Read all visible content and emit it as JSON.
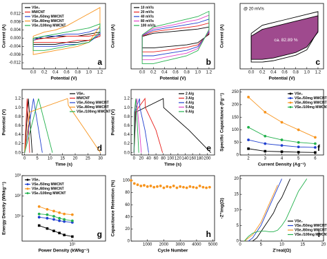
{
  "chart_data": [
    {
      "type": "line",
      "panel_label": "a",
      "x_label": "Potential (V)",
      "y_label": "Current (A)",
      "legend": "upper left",
      "xlim": [
        -0.2,
        1.3
      ],
      "xticks": [
        {
          "value": 0,
          "label": "0.0"
        },
        0.2,
        0.4,
        0.6,
        0.8,
        {
          "value": 1,
          "label": "1.0"
        },
        1.2
      ],
      "ylim": [
        -0.015,
        0.017
      ],
      "yticks": [
        -0.012,
        -0.008,
        -0.004,
        {
          "value": 0,
          "label": "0.000"
        },
        0.004,
        0.008,
        0.012
      ],
      "x": [
        0,
        0.2,
        0.4,
        0.6,
        0.8,
        1.0,
        1.2,
        1.2,
        1.0,
        0.8,
        0.6,
        0.4,
        0.2,
        0,
        0
      ],
      "series": [
        {
          "name": "VSe₂",
          "color": "#000000",
          "values": [
            0.0,
            0.0,
            0.001,
            0.001,
            0.001,
            0.002,
            0.003,
            0.001,
            -0.001,
            -0.002,
            -0.002,
            -0.003,
            -0.003,
            -0.003,
            0.0
          ]
        },
        {
          "name": "MWCNT",
          "color": "#e8201c",
          "values": [
            -0.001,
            0.0,
            0.0,
            0.001,
            0.001,
            0.001,
            0.002,
            0.001,
            -0.001,
            -0.001,
            -0.002,
            -0.002,
            -0.002,
            -0.002,
            -0.001
          ]
        },
        {
          "name": "VSe₂/50mg MWCNT",
          "color": "#1f3fcf",
          "values": [
            -0.001,
            0.001,
            0.001,
            0.002,
            0.002,
            0.003,
            0.005,
            0.002,
            -0.002,
            -0.003,
            -0.003,
            -0.004,
            -0.004,
            -0.004,
            -0.001
          ]
        },
        {
          "name": "VSe₂/80mg MWCNT",
          "color": "#f7941d",
          "values": [
            0.001,
            0.003,
            0.004,
            0.006,
            0.009,
            0.012,
            0.015,
            0.006,
            -0.002,
            -0.004,
            -0.005,
            -0.006,
            -0.007,
            -0.008,
            0.001
          ]
        },
        {
          "name": "VSe₂/100mg MWCNT",
          "color": "#22b14c",
          "values": [
            0.0,
            0.001,
            0.002,
            0.003,
            0.004,
            0.005,
            0.007,
            0.003,
            -0.002,
            -0.003,
            -0.004,
            -0.005,
            -0.006,
            -0.006,
            0.0
          ]
        }
      ]
    },
    {
      "type": "line",
      "panel_label": "b",
      "x_label": "Potential (V)",
      "y_label": "Current (A)",
      "legend": "upper left",
      "xlim": [
        -0.2,
        1.3
      ],
      "xticks": [
        {
          "value": 0,
          "label": "0.0"
        },
        0.2,
        0.4,
        0.6,
        0.8,
        {
          "value": 1,
          "label": "1.0"
        },
        1.2
      ],
      "ylim": [
        -1.2,
        1.3
      ],
      "x": [
        0,
        0.2,
        0.4,
        0.6,
        0.8,
        1.0,
        1.2,
        1.2,
        1.0,
        0.8,
        0.6,
        0.4,
        0.2,
        0,
        0
      ],
      "series": [
        {
          "name": "10 mV/s",
          "color": "#000000",
          "values": [
            0.04,
            0.16,
            0.2,
            0.24,
            0.28,
            0.32,
            0.4,
            0.12,
            -0.2,
            -0.28,
            -0.32,
            -0.36,
            -0.4,
            -0.4,
            0.04
          ]
        },
        {
          "name": "20 mV/s",
          "color": "#e8201c",
          "values": [
            0.05,
            0.22,
            0.28,
            0.33,
            0.38,
            0.44,
            0.55,
            0.16,
            -0.28,
            -0.38,
            -0.44,
            -0.5,
            -0.55,
            -0.55,
            0.05
          ]
        },
        {
          "name": "40 mV/s",
          "color": "#1f3fcf",
          "values": [
            0.07,
            0.28,
            0.35,
            0.42,
            0.49,
            0.56,
            0.7,
            0.21,
            -0.35,
            -0.49,
            -0.56,
            -0.63,
            -0.7,
            -0.7,
            0.07
          ]
        },
        {
          "name": "80 mV/s",
          "color": "#e040c8",
          "values": [
            0.08,
            0.34,
            0.42,
            0.5,
            0.6,
            0.68,
            0.85,
            0.25,
            -0.42,
            -0.6,
            -0.68,
            -0.76,
            -0.85,
            -0.85,
            0.08
          ]
        },
        {
          "name": "100 mV/s",
          "color": "#22b14c",
          "values": [
            0.1,
            0.4,
            0.5,
            0.6,
            0.7,
            0.8,
            1.0,
            0.3,
            -0.5,
            -0.7,
            -0.8,
            -0.9,
            -1.0,
            -1.0,
            0.1
          ]
        }
      ]
    },
    {
      "type": "line",
      "panel_label": "c",
      "x_label": "Potential (V)",
      "y_label": "Current (A)",
      "title": "@ 20 mV/s",
      "annotation": "ca. 82.89 %",
      "xlim": [
        -0.2,
        1.3
      ],
      "xticks": [
        {
          "value": 0,
          "label": "0.0"
        },
        0.2,
        0.4,
        0.6,
        0.8,
        {
          "value": 1,
          "label": "1.0"
        },
        1.2
      ],
      "ylim": [
        -1.1,
        1.3
      ],
      "x": [
        0,
        0.2,
        0.4,
        0.6,
        0.8,
        1.0,
        1.2,
        1.2,
        1.0,
        0.8,
        0.6,
        0.4,
        0.2,
        0,
        0
      ],
      "series": [
        {
          "color": "#000000",
          "values": [
            0.2,
            0.5,
            0.6,
            0.7,
            0.8,
            0.9,
            1.0,
            0.3,
            -0.4,
            -0.6,
            -0.7,
            -0.8,
            -0.85,
            -0.85,
            0.2
          ]
        },
        {
          "color": "#000000",
          "fill": "#8e2a7a",
          "values": [
            0.1,
            0.35,
            0.45,
            0.55,
            0.65,
            0.75,
            0.85,
            0.25,
            -0.3,
            -0.5,
            -0.6,
            -0.7,
            -0.75,
            -0.75,
            0.1
          ]
        }
      ]
    },
    {
      "type": "line",
      "panel_label": "d",
      "x_label": "Time (s)",
      "y_label": "Potential (V)",
      "legend": "upper right",
      "xlim": [
        -1,
        32
      ],
      "xticks": [
        0,
        5,
        10,
        15,
        20,
        25,
        30
      ],
      "ylim": [
        -0.05,
        1.4
      ],
      "yticks": [
        {
          "value": 0,
          "label": "0.0"
        },
        0.2,
        0.4,
        0.6,
        0.8,
        {
          "value": 1,
          "label": "1.0"
        },
        1.2
      ],
      "series": [
        {
          "name": "VSe₂",
          "color": "#000000",
          "x": [
            0,
            1.5,
            3
          ],
          "values": [
            0,
            1.2,
            0
          ]
        },
        {
          "name": "MWCNT",
          "color": "#e8201c",
          "x": [
            0,
            1,
            2
          ],
          "values": [
            0,
            1.2,
            0
          ]
        },
        {
          "name": "VSe₂/50mg MWCNT",
          "color": "#1f3fcf",
          "x": [
            0,
            3.5,
            7
          ],
          "values": [
            0,
            1.2,
            0
          ]
        },
        {
          "name": "VSe₂/80mg MWCNT",
          "color": "#f7941d",
          "x": [
            0,
            2,
            17,
            17.3,
            24,
            30
          ],
          "values": [
            0,
            0.9,
            1.2,
            1.05,
            0.5,
            0
          ]
        },
        {
          "name": "VSe₂/100mg MWCNT",
          "color": "#22b14c",
          "x": [
            0,
            5.5,
            11
          ],
          "values": [
            0,
            1.2,
            0
          ]
        }
      ]
    },
    {
      "type": "line",
      "panel_label": "e",
      "x_label": "Time (s)",
      "y_label": "Potential (V)",
      "legend": "upper right",
      "xlim": [
        -8,
        220
      ],
      "xticks": [
        0,
        20,
        40,
        60,
        80,
        100,
        120,
        140,
        160,
        180,
        200
      ],
      "ylim": [
        -0.05,
        1.4
      ],
      "yticks": [
        {
          "value": 0,
          "label": "0.0"
        },
        0.2,
        0.4,
        0.6,
        0.8,
        {
          "value": 1,
          "label": "1.0"
        },
        1.2
      ],
      "series": [
        {
          "name": "2 A/g",
          "color": "#000000",
          "x": [
            0,
            5,
            80,
            81,
            150,
            210
          ],
          "values": [
            0,
            0.9,
            1.2,
            1.0,
            0.5,
            0
          ]
        },
        {
          "name": "3 A/g",
          "color": "#e8201c",
          "x": [
            0,
            3,
            30,
            31,
            60,
            78
          ],
          "values": [
            0,
            0.9,
            1.2,
            1.0,
            0.5,
            0
          ]
        },
        {
          "name": "4 A/g",
          "color": "#1f3fcf",
          "x": [
            0,
            2,
            15,
            16,
            30,
            40
          ],
          "values": [
            0,
            0.9,
            1.2,
            1.0,
            0.5,
            0
          ]
        },
        {
          "name": "5 A/g",
          "color": "#e040c8",
          "x": [
            0,
            1,
            8,
            9,
            15,
            20
          ],
          "values": [
            0,
            0.9,
            1.2,
            1.0,
            0.5,
            0
          ]
        },
        {
          "name": "6 A/g",
          "color": "#22b14c",
          "x": [
            0,
            1,
            5,
            6,
            10,
            13
          ],
          "values": [
            0,
            0.9,
            1.2,
            1.0,
            0.5,
            0
          ]
        }
      ]
    },
    {
      "type": "line",
      "panel_label": "f",
      "x_label": "Current Density (Ag⁻¹)",
      "y_label": "Specific Capacitance (Fg⁻¹)",
      "legend": "upper right",
      "xlim": [
        1.5,
        6.5
      ],
      "xticks": [
        2,
        3,
        4,
        5,
        6
      ],
      "ylim": [
        0,
        260
      ],
      "yticks": [
        0,
        50,
        100,
        150,
        200,
        250
      ],
      "x": [
        2,
        3,
        4,
        5,
        6
      ],
      "series": [
        {
          "name": "VSe₂",
          "color": "#000000",
          "marker": "square",
          "values": [
            25,
            15,
            13,
            11,
            10
          ]
        },
        {
          "name": "VSe₂/50mg MWCNT",
          "color": "#1f3fcf",
          "marker": "circle",
          "values": [
            60,
            45,
            38,
            32,
            30
          ]
        },
        {
          "name": "VSe₂/80mg MWCNT",
          "color": "#f7941d",
          "marker": "circle",
          "values": [
            230,
            170,
            130,
            100,
            70
          ]
        },
        {
          "name": "VSe₂/100mg MWCNT",
          "color": "#22b14c",
          "marker": "circle",
          "values": [
            110,
            75,
            60,
            50,
            45
          ]
        }
      ]
    },
    {
      "type": "line",
      "panel_label": "g",
      "x_label": "Power Density (kWkg⁻¹)",
      "y_label": "Energy Density (Whkg⁻¹)",
      "legend": "upper left",
      "xlog": true,
      "ylog": true,
      "xlim": [
        2.5,
        25
      ],
      "xticks": [
        {
          "value": 10,
          "label": "10¹"
        }
      ],
      "ylim": [
        0.6,
        1000
      ],
      "yticks": [
        {
          "value": 10,
          "label": "10¹"
        },
        {
          "value": 100,
          "label": "10²"
        },
        {
          "value": 1000,
          "label": "10³"
        }
      ],
      "x": [
        4,
        5,
        6,
        7,
        8,
        10
      ],
      "series": [
        {
          "name": "VSe₂",
          "color": "#000000",
          "marker": "square",
          "values": [
            3.5,
            2.5,
            1.9,
            1.5,
            1.2,
            1.0
          ]
        },
        {
          "name": "VSe₂/50mg MWCNT",
          "color": "#1f3fcf",
          "marker": "circle",
          "values": [
            9,
            8,
            7,
            6,
            5.5,
            5
          ]
        },
        {
          "name": "VSe₂/80mg MWCNT",
          "color": "#f7941d",
          "marker": "circle",
          "values": [
            30,
            22,
            18,
            15,
            13,
            12
          ]
        },
        {
          "name": "VSe₂/100mg MWCNT",
          "color": "#22b14c",
          "marker": "circle",
          "values": [
            13,
            12,
            10,
            8,
            7,
            6
          ]
        }
      ]
    },
    {
      "type": "scatter",
      "panel_label": "h",
      "x_label": "Cycle Number",
      "y_label": "Capacitance Retention (%)",
      "xlim": [
        0,
        5100
      ],
      "xticks": [
        1000,
        2000,
        3000,
        4000,
        5000
      ],
      "ylim": [
        0,
        108
      ],
      "yticks": [
        0,
        20,
        40,
        60,
        80,
        100
      ],
      "x": [
        0,
        200,
        400,
        600,
        800,
        1000,
        1200,
        1400,
        1600,
        1800,
        2000,
        2200,
        2400,
        2600,
        2800,
        3000,
        3200,
        3400,
        3600,
        3800,
        4000,
        4200,
        4400,
        4600,
        4800
      ],
      "series": [
        {
          "color": "#f7941d",
          "marker": "circle",
          "values": [
            100,
            95,
            93,
            91,
            92,
            90,
            91,
            89,
            90,
            91,
            88,
            90,
            89,
            91,
            88,
            90,
            89,
            88,
            90,
            89,
            88,
            91,
            89,
            88,
            89
          ]
        }
      ]
    },
    {
      "type": "line",
      "panel_label": "i",
      "x_label": "Z'real(Ω)",
      "y_label": "-Z''img(Ω)",
      "legend": "lower right",
      "xlim": [
        0,
        20
      ],
      "xticks": [
        0,
        5,
        10,
        15,
        20
      ],
      "ylim": [
        0,
        21
      ],
      "yticks": [
        0,
        5,
        10,
        15,
        20
      ],
      "series": [
        {
          "name": "VSe₂",
          "color": "#000000",
          "x": [
            3,
            4,
            5,
            6,
            7,
            8,
            9,
            10,
            11,
            12
          ],
          "values": [
            0,
            1,
            3,
            5,
            7,
            9,
            12,
            14,
            17,
            20
          ]
        },
        {
          "name": "VSe₂/50mg MWCNT",
          "color": "#1f3fcf",
          "x": [
            2,
            3,
            4,
            5,
            6,
            7,
            8,
            9,
            10
          ],
          "values": [
            0,
            1,
            3,
            5,
            8,
            11,
            14,
            17,
            20
          ]
        },
        {
          "name": "VSe₂/80mg MWCNT",
          "color": "#f7941d",
          "x": [
            1,
            2,
            3,
            4,
            5,
            6,
            7,
            8,
            9
          ],
          "values": [
            0,
            1,
            2,
            4,
            6,
            9,
            12,
            15,
            18
          ]
        },
        {
          "name": "VSe₂/100mg MWCNT",
          "color": "#22b14c",
          "x": [
            1,
            2,
            3,
            4,
            5,
            6,
            7,
            8,
            9,
            10,
            11,
            12,
            13,
            14,
            15,
            16
          ],
          "values": [
            0,
            1.5,
            2.5,
            3,
            3.2,
            3.2,
            3,
            3,
            3.5,
            5,
            7,
            10,
            13,
            16,
            18,
            20
          ]
        }
      ]
    }
  ]
}
